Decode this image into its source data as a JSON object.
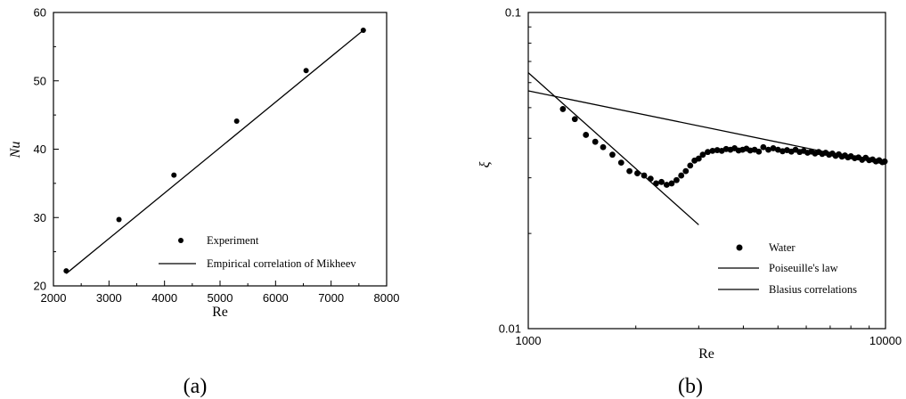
{
  "chart_data": [
    {
      "type": "scatter",
      "caption": "(a)",
      "xlabel": "Re",
      "ylabel": "Nu",
      "xlim": [
        2000,
        8000
      ],
      "ylim": [
        20,
        60
      ],
      "x_ticks": [
        2000,
        3000,
        4000,
        5000,
        6000,
        7000,
        8000
      ],
      "y_ticks": [
        20,
        30,
        40,
        50,
        60
      ],
      "grid": false,
      "legend_position": "bottom-right",
      "series": [
        {
          "name": "Experiment",
          "kind": "markers",
          "x": [
            2230,
            3180,
            4170,
            5300,
            6550,
            7580
          ],
          "y": [
            22.2,
            29.7,
            36.2,
            44.1,
            51.5,
            57.4
          ]
        },
        {
          "name": "Empirical correlation of Mikheev",
          "kind": "line",
          "x": [
            2230,
            7580
          ],
          "y": [
            21.8,
            57.4
          ]
        }
      ]
    },
    {
      "type": "scatter",
      "caption": "(b)",
      "xlabel": "Re",
      "ylabel": "ξ",
      "xscale": "log",
      "yscale": "log",
      "xlim": [
        1000,
        10000
      ],
      "ylim": [
        0.01,
        0.1
      ],
      "x_tick_labels": [
        "1000",
        "10000"
      ],
      "y_tick_labels": [
        "0.1",
        "0.01"
      ],
      "grid": false,
      "legend_position": "bottom-right",
      "series": [
        {
          "name": "Water",
          "kind": "markers",
          "x": [
            1250,
            1350,
            1450,
            1540,
            1620,
            1720,
            1820,
            1920,
            2020,
            2110,
            2200,
            2280,
            2360,
            2440,
            2520,
            2600,
            2680,
            2760,
            2840,
            2920,
            3000,
            3080,
            3180,
            3280,
            3380,
            3480,
            3580,
            3680,
            3780,
            3880,
            3980,
            4080,
            4180,
            4300,
            4420,
            4550,
            4700,
            4850,
            5000,
            5150,
            5300,
            5450,
            5600,
            5750,
            5900,
            6050,
            6200,
            6350,
            6500,
            6650,
            6800,
            6950,
            7100,
            7250,
            7400,
            7550,
            7700,
            7850,
            8000,
            8200,
            8400,
            8600,
            8800,
            9000,
            9200,
            9400,
            9600,
            9800,
            9950
          ],
          "y": [
            0.0495,
            0.046,
            0.041,
            0.039,
            0.0375,
            0.0355,
            0.0335,
            0.0315,
            0.031,
            0.0305,
            0.0298,
            0.0288,
            0.0291,
            0.0285,
            0.0288,
            0.0295,
            0.0305,
            0.0315,
            0.0328,
            0.034,
            0.0345,
            0.0355,
            0.0362,
            0.0365,
            0.0367,
            0.0365,
            0.037,
            0.0368,
            0.0372,
            0.0366,
            0.0368,
            0.0371,
            0.0366,
            0.0368,
            0.0363,
            0.0375,
            0.0368,
            0.0372,
            0.0368,
            0.0364,
            0.0367,
            0.0363,
            0.0368,
            0.0362,
            0.0365,
            0.036,
            0.0363,
            0.0358,
            0.0362,
            0.0357,
            0.036,
            0.0355,
            0.0358,
            0.0352,
            0.0356,
            0.035,
            0.0353,
            0.0348,
            0.0351,
            0.0346,
            0.0348,
            0.0342,
            0.0347,
            0.0341,
            0.0343,
            0.0338,
            0.0341,
            0.0336,
            0.0338
          ]
        },
        {
          "name": "Poiseuille's law",
          "kind": "line",
          "x": [
            1000,
            3000
          ],
          "y": [
            0.0645,
            0.0213
          ]
        },
        {
          "name": "Blasius correlations",
          "kind": "line",
          "x": [
            1000,
            10000
          ],
          "y": [
            0.0565,
            0.0331
          ]
        }
      ]
    }
  ]
}
